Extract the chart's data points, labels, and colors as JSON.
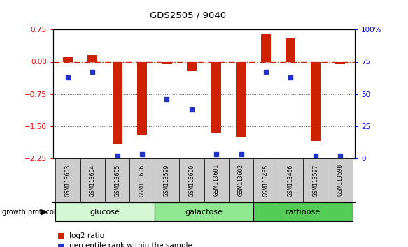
{
  "title": "GDS2505 / 9040",
  "samples": [
    "GSM113603",
    "GSM113604",
    "GSM113605",
    "GSM113606",
    "GSM113599",
    "GSM113600",
    "GSM113601",
    "GSM113602",
    "GSM113465",
    "GSM113466",
    "GSM113597",
    "GSM113598"
  ],
  "log2_ratio": [
    0.1,
    0.15,
    -1.92,
    -1.7,
    -0.05,
    -0.22,
    -1.65,
    -1.75,
    0.65,
    0.55,
    -1.85,
    -0.05
  ],
  "percentile_rank": [
    63,
    67,
    2,
    3,
    46,
    38,
    3,
    3,
    67,
    63,
    2,
    2
  ],
  "groups": [
    {
      "label": "glucose",
      "start": 0,
      "end": 4,
      "color": "#d4f7d4"
    },
    {
      "label": "galactose",
      "start": 4,
      "end": 8,
      "color": "#90e890"
    },
    {
      "label": "raffinose",
      "start": 8,
      "end": 12,
      "color": "#55cc55"
    }
  ],
  "bar_color": "#cc2200",
  "dot_color": "#2233cc",
  "ylim_left": [
    -2.25,
    0.75
  ],
  "ylim_right": [
    0,
    100
  ],
  "yticks_left": [
    -2.25,
    -1.5,
    -0.75,
    0,
    0.75
  ],
  "yticks_right": [
    0,
    25,
    50,
    75,
    100
  ],
  "zero_line_color": "#cc2200",
  "dotted_line_color": "#555555",
  "background_color": "#ffffff",
  "bar_width": 0.4,
  "legend_log2": "log2 ratio",
  "legend_pct": "percentile rank within the sample",
  "growth_protocol_label": "growth protocol",
  "sample_label_bg": "#cccccc"
}
